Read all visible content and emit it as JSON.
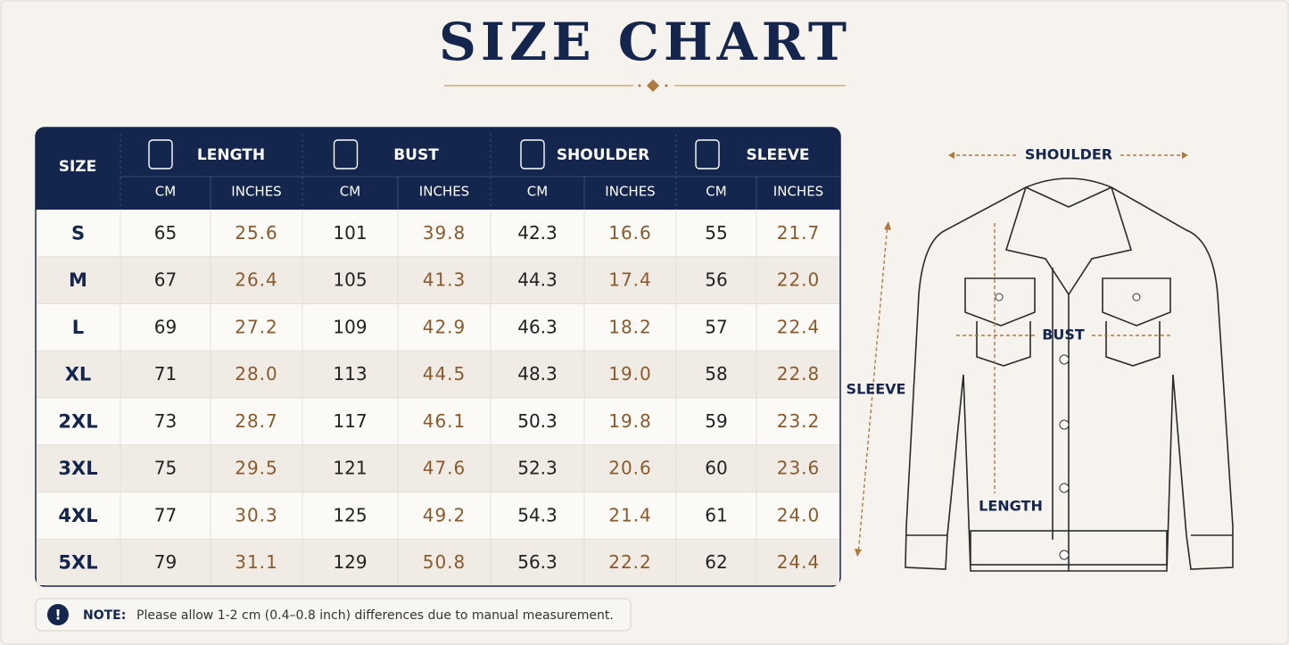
{
  "header": {
    "title": "SIZE CHART"
  },
  "table": {
    "size_header": "SIZE",
    "groups": [
      "LENGTH",
      "BUST",
      "SHOULDER",
      "SLEEVE"
    ],
    "units": [
      "CM",
      "INCHES",
      "CM",
      "INCHES",
      "CM",
      "INCHES",
      "CM",
      "INCHES"
    ],
    "rows": [
      [
        "S",
        "65",
        "25.6",
        "101",
        "39.8",
        "42.3",
        "16.6",
        "55",
        "21.7"
      ],
      [
        "M",
        "67",
        "26.4",
        "105",
        "41.3",
        "44.3",
        "17.4",
        "56",
        "22.0"
      ],
      [
        "L",
        "69",
        "27.2",
        "109",
        "42.9",
        "46.3",
        "18.2",
        "57",
        "22.4"
      ],
      [
        "XL",
        "71",
        "28.0",
        "113",
        "44.5",
        "48.3",
        "19.0",
        "58",
        "22.8"
      ],
      [
        "2XL",
        "73",
        "28.7",
        "117",
        "46.1",
        "50.3",
        "19.8",
        "59",
        "23.2"
      ],
      [
        "3XL",
        "75",
        "29.5",
        "121",
        "47.6",
        "52.3",
        "20.6",
        "60",
        "23.6"
      ],
      [
        "4XL",
        "77",
        "30.3",
        "125",
        "49.2",
        "54.3",
        "21.4",
        "61",
        "24.0"
      ],
      [
        "5XL",
        "79",
        "31.1",
        "129",
        "50.8",
        "56.3",
        "22.2",
        "62",
        "24.4"
      ]
    ]
  },
  "note": {
    "icon": "!",
    "label": "NOTE:",
    "text": "Please allow 1-2 cm (0.4–0.8 inch) differences due to manual measurement."
  },
  "diagram": {
    "shoulder": "SHOULDER",
    "bust": "BUST",
    "sleeve": "SLEEVE",
    "length": "LENGTH"
  }
}
